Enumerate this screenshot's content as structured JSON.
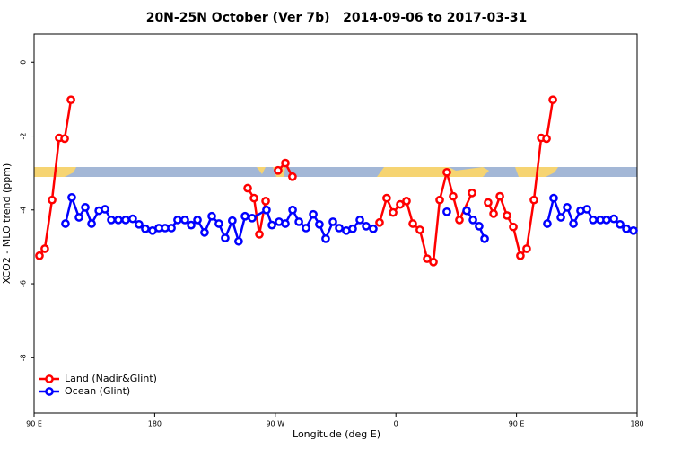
{
  "chart_data": {
    "type": "line",
    "title": "20N-25N October (Ver 7b)   2014-09-06 to 2017-03-31",
    "x_label": "Longitude (deg E)",
    "y_label": "XCO2 - MLO trend (ppm)",
    "xlim": [
      90,
      540
    ],
    "xticks": [
      {
        "value": 90,
        "label": "90 E"
      },
      180,
      {
        "value": 270,
        "label": "90 W"
      },
      {
        "value": 360,
        "label": "0"
      },
      {
        "value": 450,
        "label": "90 E"
      },
      {
        "value": 540,
        "label": "180"
      }
    ],
    "ylim": [
      -9.5,
      0.76
    ],
    "yticks": [
      0,
      -2,
      -4,
      -6,
      -8
    ],
    "legend": "bottom-left",
    "series": [
      {
        "name": "Land (Nadir&Glint)",
        "color": "#ff0000",
        "x": [
          94.0,
          98.0,
          103.4,
          108.7,
          112.8,
          117.5,
          null,
          249.4,
          254.1,
          258.1,
          262.8,
          null,
          272.1,
          277.5,
          282.8,
          null,
          347.8,
          353.1,
          357.9,
          363.2,
          367.9,
          372.6,
          377.9,
          383.3,
          388.0,
          392.7,
          398.0,
          402.7,
          407.4,
          416.8,
          null,
          428.8,
          432.9,
          437.6,
          442.9,
          447.6,
          452.9,
          457.6,
          463.0,
          468.4,
          472.4,
          477.1
        ],
        "values": [
          -5.24,
          -5.05,
          -3.73,
          -2.05,
          -2.07,
          -1.02,
          null,
          -3.41,
          -3.68,
          -4.66,
          -3.76,
          null,
          -2.93,
          -2.73,
          -3.1,
          null,
          -4.34,
          -3.68,
          -4.07,
          -3.85,
          -3.76,
          -4.37,
          -4.54,
          -5.32,
          -5.41,
          -3.73,
          -2.98,
          -3.63,
          -4.27,
          -3.54,
          null,
          -3.8,
          -4.1,
          -3.63,
          -4.15,
          -4.46,
          -5.24,
          -5.05,
          -3.73,
          -2.05,
          -2.07,
          -1.02
        ]
      },
      {
        "name": "Ocean (Glint)",
        "color": "#0000ff",
        "x": [
          113.4,
          118.1,
          123.5,
          128.2,
          132.9,
          138.3,
          142.9,
          147.6,
          152.9,
          158.3,
          163.6,
          168.3,
          173.0,
          178.4,
          183.1,
          187.8,
          192.5,
          197.1,
          202.5,
          207.2,
          211.9,
          217.2,
          222.6,
          227.9,
          232.6,
          237.9,
          242.6,
          247.4,
          252.7,
          263.4,
          267.5,
          272.8,
          277.5,
          282.9,
          287.6,
          292.9,
          298.3,
          302.9,
          307.6,
          313.0,
          317.7,
          323.0,
          327.7,
          333.1,
          337.8,
          343.1,
          null,
          398.0,
          null,
          412.8,
          417.5,
          422.1,
          426.2,
          null,
          473.0,
          477.7,
          483.1,
          487.8,
          492.5,
          497.8,
          502.5,
          507.2,
          512.6,
          517.2,
          522.6,
          527.3,
          532.0,
          537.3
        ],
        "values": [
          -4.37,
          -3.66,
          -4.2,
          -3.93,
          -4.37,
          -4.02,
          -3.98,
          -4.27,
          -4.27,
          -4.27,
          -4.24,
          -4.39,
          -4.51,
          -4.56,
          -4.49,
          -4.49,
          -4.49,
          -4.27,
          -4.27,
          -4.41,
          -4.27,
          -4.61,
          -4.17,
          -4.37,
          -4.76,
          -4.29,
          -4.85,
          -4.17,
          -4.22,
          -4.0,
          -4.41,
          -4.32,
          -4.37,
          -4.0,
          -4.32,
          -4.49,
          -4.12,
          -4.39,
          -4.78,
          -4.32,
          -4.49,
          -4.56,
          -4.51,
          -4.27,
          -4.44,
          -4.51,
          null,
          -4.05,
          null,
          -4.02,
          -4.27,
          -4.44,
          -4.78,
          null,
          -4.37,
          -3.68,
          -4.2,
          -3.93,
          -4.37,
          -4.02,
          -3.98,
          -4.27,
          -4.27,
          -4.27,
          -4.24,
          -4.39,
          -4.51,
          -4.56
        ]
      }
    ]
  }
}
